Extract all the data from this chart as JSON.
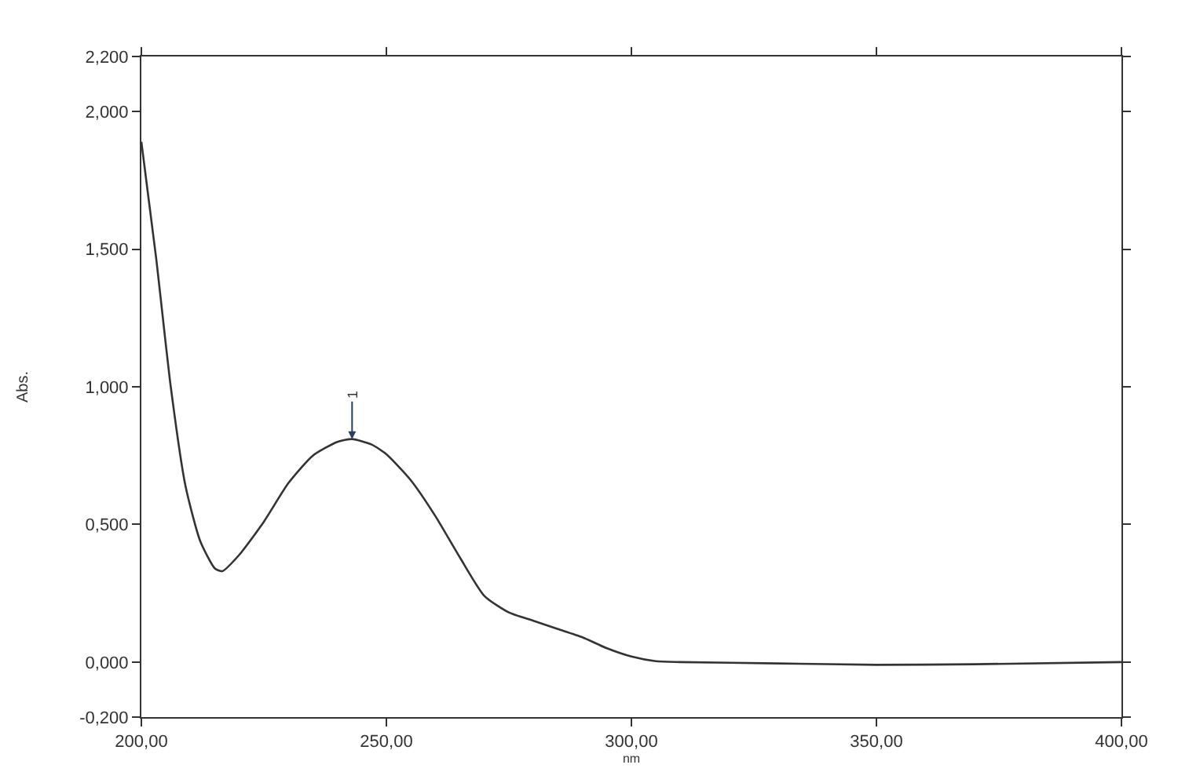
{
  "chart_data": {
    "type": "line",
    "xlabel": "nm",
    "ylabel": "Abs.",
    "x": [
      200,
      203,
      206,
      209,
      212,
      215,
      216.5,
      220,
      225,
      230,
      235,
      240,
      243,
      247,
      250,
      255,
      260,
      265,
      270,
      275,
      280,
      285,
      290,
      295,
      300,
      305,
      310,
      330,
      350,
      370,
      400
    ],
    "series": [
      {
        "color": "#333333",
        "values": [
          1.89,
          1.47,
          1.0,
          0.64,
          0.44,
          0.34,
          0.33,
          0.39,
          0.51,
          0.65,
          0.75,
          0.8,
          0.81,
          0.79,
          0.755,
          0.66,
          0.53,
          0.38,
          0.24,
          0.18,
          0.15,
          0.12,
          0.09,
          0.05,
          0.02,
          0.003,
          0.0,
          -0.005,
          -0.01,
          -0.008,
          0.0
        ]
      }
    ],
    "annotations": [
      {
        "text": "1",
        "x": 243,
        "y": 0.81
      }
    ],
    "xlim": [
      200,
      400
    ],
    "ylim": [
      -0.2,
      2.2
    ],
    "xticks": [
      {
        "value": 200,
        "label": "200,00"
      },
      {
        "value": 250,
        "label": "250,00"
      },
      {
        "value": 300,
        "label": "300,00"
      },
      {
        "value": 350,
        "label": "350,00"
      },
      {
        "value": 400,
        "label": "400,00"
      }
    ],
    "yticks": [
      {
        "value": -0.2,
        "label": "-0,200"
      },
      {
        "value": 0,
        "label": "0,000"
      },
      {
        "value": 0.5,
        "label": "0,500"
      },
      {
        "value": 1.0,
        "label": "1,000"
      },
      {
        "value": 1.5,
        "label": "1,500"
      },
      {
        "value": 2.0,
        "label": "2,000"
      },
      {
        "value": 2.2,
        "label": "2,200"
      }
    ],
    "marker": "none",
    "line_style": "solid"
  }
}
